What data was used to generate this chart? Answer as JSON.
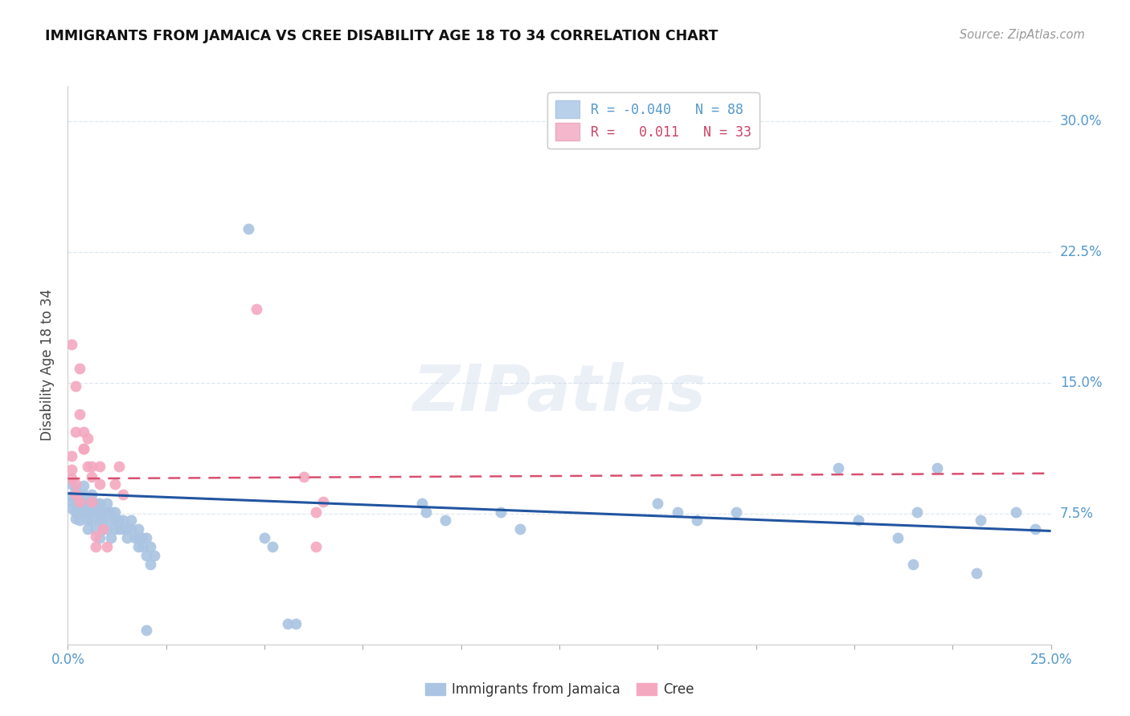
{
  "title": "IMMIGRANTS FROM JAMAICA VS CREE DISABILITY AGE 18 TO 34 CORRELATION CHART",
  "source": "Source: ZipAtlas.com",
  "ylabel": "Disability Age 18 to 34",
  "xlim": [
    0.0,
    0.25
  ],
  "ylim": [
    0.0,
    0.32
  ],
  "xtick_vals": [
    0.0,
    0.025,
    0.05,
    0.075,
    0.1,
    0.125,
    0.15,
    0.175,
    0.2,
    0.225,
    0.25
  ],
  "xtick_labels": [
    "0.0%",
    "",
    "",
    "",
    "",
    "",
    "",
    "",
    "",
    "",
    "25.0%"
  ],
  "ytick_vals": [
    0.075,
    0.15,
    0.225,
    0.3
  ],
  "ytick_labels": [
    "7.5%",
    "15.0%",
    "22.5%",
    "30.0%"
  ],
  "legend_r_blue": "-0.040",
  "legend_n_blue": "88",
  "legend_r_pink": "0.011",
  "legend_n_pink": "33",
  "legend_label_blue": "Immigrants from Jamaica",
  "legend_label_pink": "Cree",
  "blue_color": "#aac4e2",
  "pink_color": "#f4a8c0",
  "blue_line_color": "#2255a0",
  "pink_line_color": "#d85070",
  "watermark": "ZIPatlas",
  "blue_scatter": [
    [
      0.001,
      0.085
    ],
    [
      0.001,
      0.078
    ],
    [
      0.001,
      0.082
    ],
    [
      0.001,
      0.092
    ],
    [
      0.002,
      0.076
    ],
    [
      0.002,
      0.081
    ],
    [
      0.002,
      0.072
    ],
    [
      0.002,
      0.086
    ],
    [
      0.002,
      0.088
    ],
    [
      0.003,
      0.076
    ],
    [
      0.003,
      0.081
    ],
    [
      0.003,
      0.086
    ],
    [
      0.003,
      0.071
    ],
    [
      0.004,
      0.076
    ],
    [
      0.004,
      0.081
    ],
    [
      0.004,
      0.086
    ],
    [
      0.004,
      0.091
    ],
    [
      0.005,
      0.071
    ],
    [
      0.005,
      0.076
    ],
    [
      0.005,
      0.081
    ],
    [
      0.005,
      0.066
    ],
    [
      0.006,
      0.076
    ],
    [
      0.006,
      0.071
    ],
    [
      0.006,
      0.081
    ],
    [
      0.006,
      0.086
    ],
    [
      0.007,
      0.076
    ],
    [
      0.007,
      0.066
    ],
    [
      0.007,
      0.081
    ],
    [
      0.008,
      0.071
    ],
    [
      0.008,
      0.076
    ],
    [
      0.008,
      0.081
    ],
    [
      0.008,
      0.061
    ],
    [
      0.009,
      0.076
    ],
    [
      0.009,
      0.071
    ],
    [
      0.009,
      0.066
    ],
    [
      0.01,
      0.076
    ],
    [
      0.01,
      0.081
    ],
    [
      0.01,
      0.066
    ],
    [
      0.011,
      0.071
    ],
    [
      0.011,
      0.076
    ],
    [
      0.011,
      0.061
    ],
    [
      0.012,
      0.071
    ],
    [
      0.012,
      0.076
    ],
    [
      0.012,
      0.066
    ],
    [
      0.013,
      0.071
    ],
    [
      0.013,
      0.066
    ],
    [
      0.014,
      0.066
    ],
    [
      0.014,
      0.071
    ],
    [
      0.015,
      0.066
    ],
    [
      0.015,
      0.061
    ],
    [
      0.016,
      0.066
    ],
    [
      0.016,
      0.071
    ],
    [
      0.017,
      0.061
    ],
    [
      0.018,
      0.056
    ],
    [
      0.018,
      0.061
    ],
    [
      0.018,
      0.066
    ],
    [
      0.019,
      0.061
    ],
    [
      0.019,
      0.056
    ],
    [
      0.02,
      0.061
    ],
    [
      0.02,
      0.051
    ],
    [
      0.02,
      0.008
    ],
    [
      0.021,
      0.056
    ],
    [
      0.021,
      0.046
    ],
    [
      0.022,
      0.051
    ],
    [
      0.046,
      0.238
    ],
    [
      0.05,
      0.061
    ],
    [
      0.052,
      0.056
    ],
    [
      0.056,
      0.012
    ],
    [
      0.058,
      0.012
    ],
    [
      0.09,
      0.081
    ],
    [
      0.091,
      0.076
    ],
    [
      0.096,
      0.071
    ],
    [
      0.11,
      0.076
    ],
    [
      0.115,
      0.066
    ],
    [
      0.15,
      0.081
    ],
    [
      0.155,
      0.076
    ],
    [
      0.16,
      0.071
    ],
    [
      0.17,
      0.076
    ],
    [
      0.196,
      0.101
    ],
    [
      0.201,
      0.071
    ],
    [
      0.211,
      0.061
    ],
    [
      0.215,
      0.046
    ],
    [
      0.216,
      0.076
    ],
    [
      0.221,
      0.101
    ],
    [
      0.231,
      0.041
    ],
    [
      0.232,
      0.071
    ],
    [
      0.241,
      0.076
    ],
    [
      0.246,
      0.066
    ]
  ],
  "pink_scatter": [
    [
      0.001,
      0.1
    ],
    [
      0.001,
      0.095
    ],
    [
      0.001,
      0.108
    ],
    [
      0.001,
      0.172
    ],
    [
      0.002,
      0.086
    ],
    [
      0.002,
      0.092
    ],
    [
      0.002,
      0.148
    ],
    [
      0.002,
      0.122
    ],
    [
      0.003,
      0.082
    ],
    [
      0.003,
      0.158
    ],
    [
      0.003,
      0.132
    ],
    [
      0.004,
      0.112
    ],
    [
      0.004,
      0.122
    ],
    [
      0.004,
      0.112
    ],
    [
      0.005,
      0.118
    ],
    [
      0.005,
      0.102
    ],
    [
      0.006,
      0.096
    ],
    [
      0.006,
      0.102
    ],
    [
      0.006,
      0.082
    ],
    [
      0.007,
      0.062
    ],
    [
      0.007,
      0.056
    ],
    [
      0.008,
      0.102
    ],
    [
      0.008,
      0.092
    ],
    [
      0.009,
      0.066
    ],
    [
      0.01,
      0.056
    ],
    [
      0.012,
      0.092
    ],
    [
      0.013,
      0.102
    ],
    [
      0.014,
      0.086
    ],
    [
      0.048,
      0.192
    ],
    [
      0.06,
      0.096
    ],
    [
      0.063,
      0.076
    ],
    [
      0.063,
      0.056
    ],
    [
      0.065,
      0.082
    ]
  ],
  "blue_trend": {
    "x_start": 0.0,
    "x_end": 0.25,
    "y_start": 0.0865,
    "y_end": 0.065
  },
  "pink_trend": {
    "x_start": 0.0,
    "x_end": 0.25,
    "y_start": 0.095,
    "y_end": 0.098
  },
  "grid_color": "#dde8f0",
  "bg_color": "#ffffff",
  "tick_color": "#5599cc"
}
